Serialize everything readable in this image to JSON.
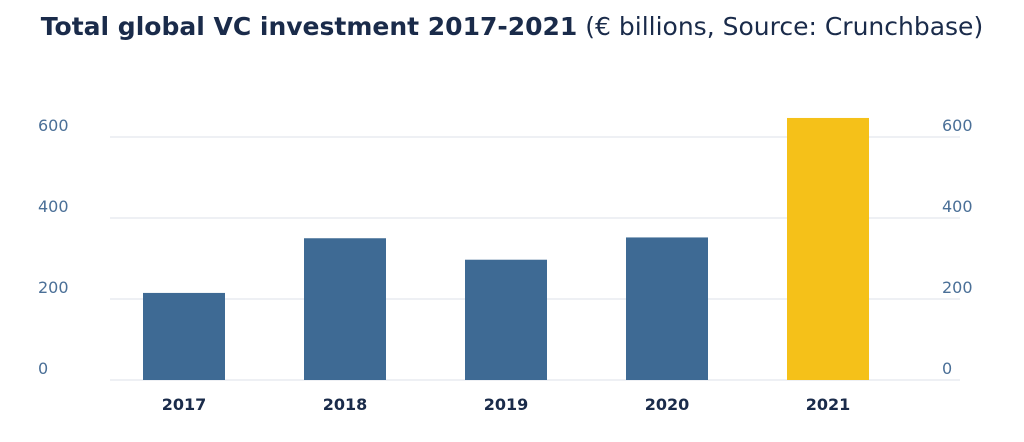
{
  "chart_data": {
    "type": "bar",
    "title": "Total global VC investment 2017-2021",
    "subtitle": "(€ billions, Source: Crunchbase)",
    "categories": [
      "2017",
      "2018",
      "2019",
      "2020",
      "2021"
    ],
    "values": [
      215,
      350,
      297,
      352,
      647
    ],
    "bar_colors": [
      "#3e6a94",
      "#3e6a94",
      "#3e6a94",
      "#3e6a94",
      "#f5c119"
    ],
    "ylim": [
      0,
      600
    ],
    "yticks": [
      "0",
      "200",
      "400",
      "600"
    ],
    "grid": true,
    "secondary_axis_right": true,
    "xlabel": "",
    "ylabel": ""
  }
}
